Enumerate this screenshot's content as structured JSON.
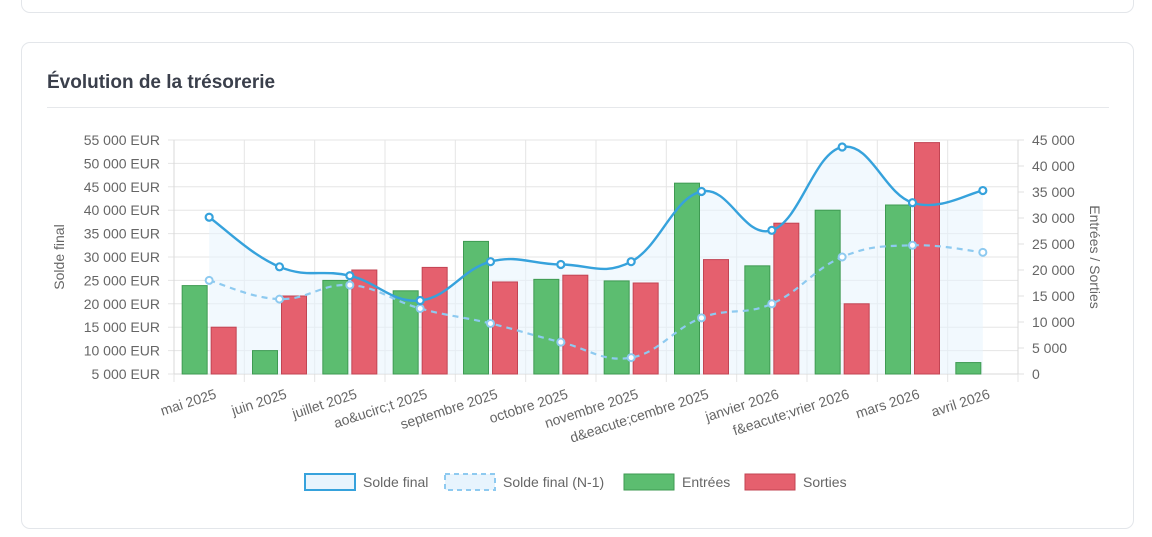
{
  "panel": {
    "title": "Évolution de la trésorerie"
  },
  "colors": {
    "solde": "#36a2dc",
    "solde_fill": "#e8f4fd",
    "solde_n1": "#8ecaf0",
    "entrees": "#5cbd70",
    "entrees_border": "#3e9a52",
    "sorties": "#e5606e",
    "sorties_border": "#c24453"
  },
  "chart_data": {
    "type": "bar",
    "categories": [
      "mai 2025",
      "juin 2025",
      "juillet 2025",
      "ao&ucirc;t 2025",
      "septembre 2025",
      "octobre 2025",
      "novembre 2025",
      "d&eacute;cembre 2025",
      "janvier 2026",
      "f&eacute;vrier 2026",
      "mars 2026",
      "avril 2026"
    ],
    "series": [
      {
        "name": "Solde final",
        "type": "line",
        "axis": "left",
        "values": [
          38500,
          27900,
          26000,
          20700,
          29000,
          28400,
          29000,
          44000,
          35700,
          53500,
          41600,
          44200
        ]
      },
      {
        "name": "Solde final (N-1)",
        "type": "line",
        "axis": "left",
        "dashed": true,
        "values": [
          25000,
          21000,
          24000,
          19000,
          15800,
          11800,
          8500,
          17000,
          20000,
          30000,
          32500,
          31000
        ]
      },
      {
        "name": "Entrées",
        "type": "bar",
        "axis": "right",
        "values": [
          17000,
          4500,
          18000,
          16000,
          25500,
          18200,
          17900,
          36700,
          20800,
          31500,
          32500,
          2200
        ]
      },
      {
        "name": "Sorties",
        "type": "bar",
        "axis": "right",
        "values": [
          9000,
          15000,
          20000,
          20500,
          17700,
          19000,
          17500,
          22000,
          29000,
          13500,
          44500,
          0
        ]
      }
    ],
    "left_axis": {
      "label": "Solde final",
      "min": 5000,
      "max": 55000,
      "step": 5000,
      "ticks": [
        "5 000 EUR",
        "10 000 EUR",
        "15 000 EUR",
        "20 000 EUR",
        "25 000 EUR",
        "30 000 EUR",
        "35 000 EUR",
        "40 000 EUR",
        "45 000 EUR",
        "50 000 EUR",
        "55 000 EUR"
      ]
    },
    "right_axis": {
      "label": "Entrées / Sorties",
      "min": 0,
      "max": 45000,
      "step": 5000,
      "ticks": [
        "0",
        "5 000",
        "10 000",
        "15 000",
        "20 000",
        "25 000",
        "30 000",
        "35 000",
        "40 000",
        "45 000"
      ]
    },
    "grid": true,
    "legend_position": "bottom"
  }
}
